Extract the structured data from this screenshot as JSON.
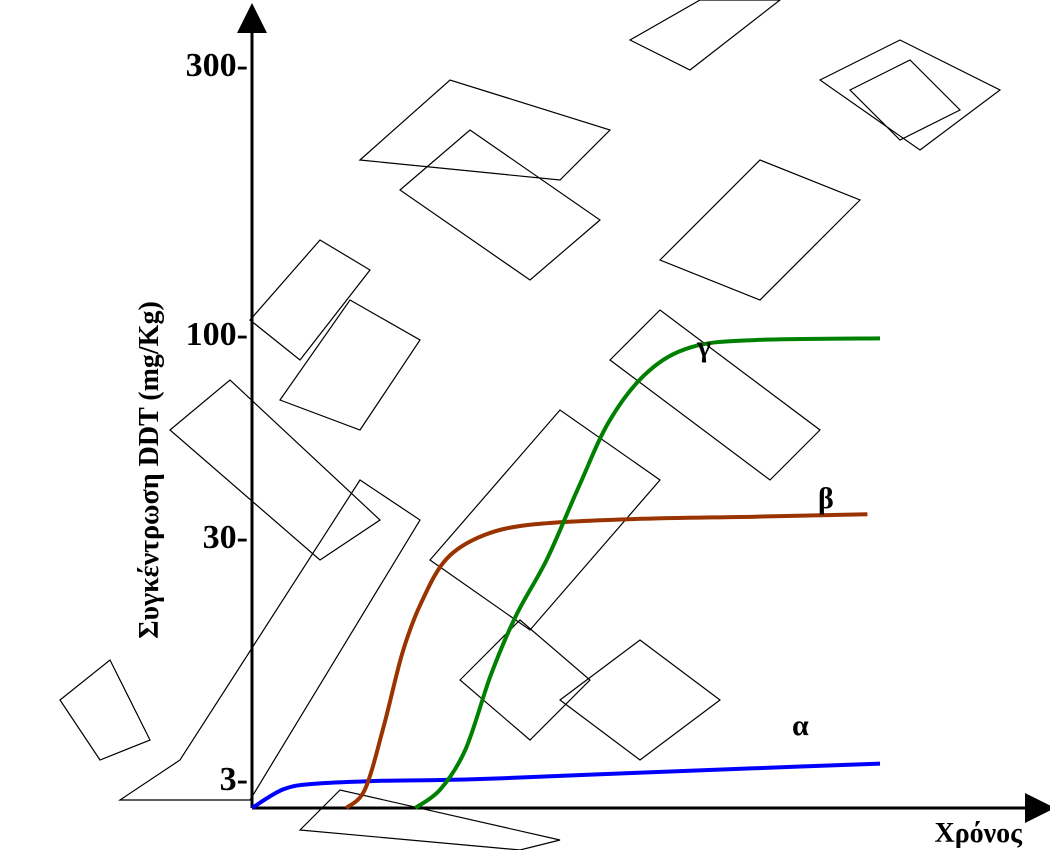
{
  "chart_data": {
    "type": "line",
    "xlabel": "Χρόνος",
    "ylabel": "Συγκέντρωση DDT (mg/Kg)",
    "y_ticks": [
      "3-",
      "30-",
      "100-",
      "300-"
    ],
    "y_scale": "log",
    "series": [
      {
        "name": "α",
        "color": "#0000ff",
        "x": [
          0,
          5,
          10,
          20,
          30,
          40,
          60,
          80,
          100
        ],
        "y": [
          0,
          2,
          2.6,
          2.9,
          3.0,
          3.05,
          3.2,
          3.35,
          3.5
        ]
      },
      {
        "name": "β",
        "color": "#993300",
        "x": [
          15,
          18,
          21,
          24,
          27,
          31,
          37,
          45,
          60,
          80,
          98
        ],
        "y": [
          0,
          2,
          5,
          10,
          16,
          24,
          30,
          32,
          33,
          33.5,
          34
        ]
      },
      {
        "name": "γ",
        "color": "#008000",
        "x": [
          26,
          30,
          34,
          38,
          42,
          47,
          52,
          57,
          63,
          70,
          80,
          100
        ],
        "y": [
          0,
          2,
          4,
          8,
          14,
          24,
          40,
          60,
          80,
          93,
          97,
          98
        ]
      }
    ]
  }
}
